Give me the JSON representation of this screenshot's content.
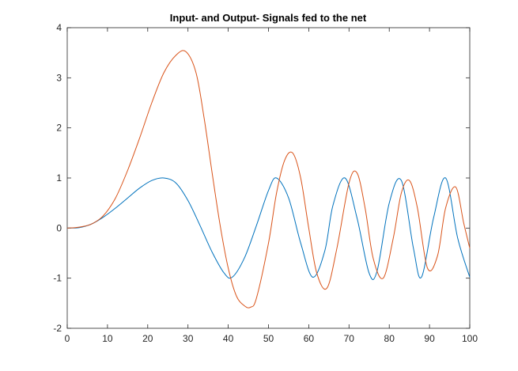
{
  "chart_data": {
    "type": "line",
    "title": "Input- and Output- Signals fed to the net",
    "xlabel": "",
    "ylabel": "",
    "xlim": [
      0,
      100
    ],
    "ylim": [
      -2,
      4
    ],
    "xticks": [
      "0",
      "10",
      "20",
      "30",
      "40",
      "50",
      "60",
      "70",
      "80",
      "90",
      "100"
    ],
    "yticks": [
      "-2",
      "-1",
      "0",
      "1",
      "2",
      "3",
      "4"
    ],
    "grid": false,
    "legend": "none",
    "series": [
      {
        "color": "#0072bd",
        "x": [
          0,
          3,
          6,
          9,
          12,
          15,
          18,
          21,
          24,
          27,
          30,
          33,
          36,
          39,
          41,
          44,
          47,
          50,
          52,
          55,
          58,
          61,
          64,
          66,
          69,
          72,
          75,
          77,
          80,
          83,
          86,
          88,
          91,
          94,
          97,
          100
        ],
        "y": [
          0.0,
          0.01,
          0.08,
          0.22,
          0.4,
          0.6,
          0.8,
          0.95,
          1.0,
          0.9,
          0.55,
          0.05,
          -0.48,
          -0.9,
          -0.98,
          -0.6,
          0.05,
          0.75,
          1.0,
          0.6,
          -0.3,
          -0.98,
          -0.45,
          0.45,
          1.0,
          0.2,
          -0.9,
          -0.85,
          0.5,
          0.95,
          -0.4,
          -0.98,
          0.2,
          1.0,
          -0.2,
          -0.98
        ]
      },
      {
        "color": "#d95319",
        "x": [
          0,
          3,
          6,
          9,
          12,
          15,
          18,
          21,
          24,
          27,
          29.5,
          32,
          34,
          36,
          38,
          40,
          42,
          44,
          45.5,
          47,
          50,
          52,
          54,
          56,
          58,
          60,
          62,
          64.5,
          67,
          70,
          72,
          74,
          76,
          78.5,
          81,
          83,
          85,
          87,
          89.5,
          92,
          94,
          96.5,
          98.5,
          100
        ],
        "y": [
          0.0,
          0.02,
          0.08,
          0.25,
          0.6,
          1.15,
          1.8,
          2.5,
          3.1,
          3.45,
          3.52,
          3.1,
          2.2,
          1.1,
          0.05,
          -0.8,
          -1.35,
          -1.55,
          -1.58,
          -1.4,
          -0.3,
          0.7,
          1.35,
          1.5,
          1.0,
          0.0,
          -0.9,
          -1.2,
          -0.4,
          0.9,
          1.1,
          0.4,
          -0.6,
          -1.0,
          -0.2,
          0.7,
          0.95,
          0.4,
          -0.8,
          -0.55,
          0.4,
          0.82,
          0.1,
          -0.4
        ]
      }
    ]
  }
}
